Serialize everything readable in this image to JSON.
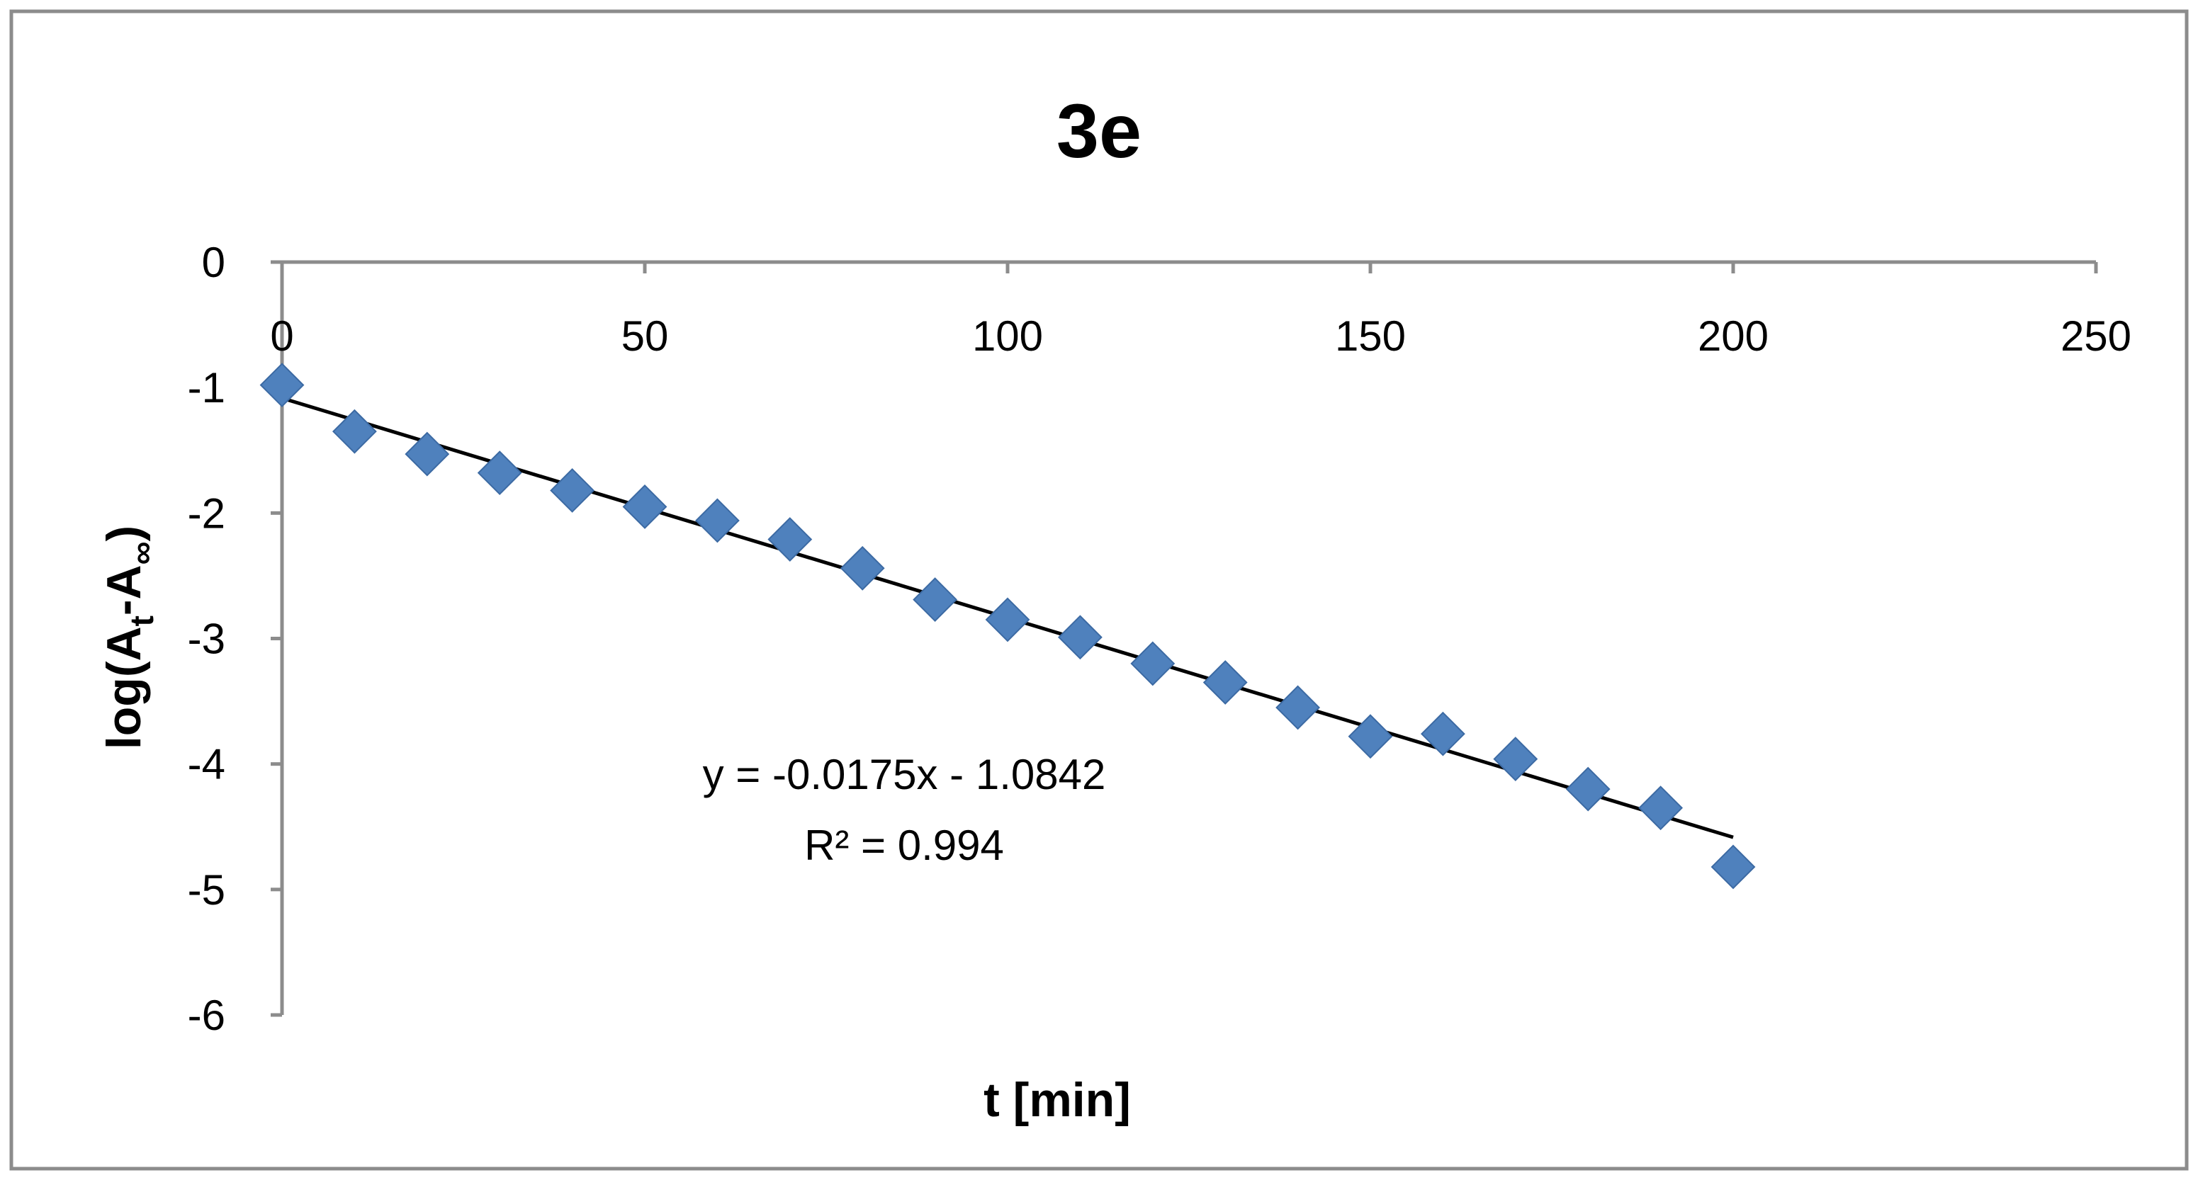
{
  "chart_data": {
    "type": "scatter",
    "title": "3e",
    "xlabel": "t [min]",
    "ylabel": {
      "prefix": "log(A",
      "sub1": "t",
      "mid": "-A",
      "sub2": "∞",
      "suffix": ")"
    },
    "xlim": [
      0,
      250
    ],
    "ylim": [
      -6,
      0
    ],
    "x_ticks": [
      0,
      50,
      100,
      150,
      200,
      250
    ],
    "y_ticks": [
      0,
      -1,
      -2,
      -3,
      -4,
      -5,
      -6
    ],
    "x_tick_labels": [
      "0",
      "50",
      "100",
      "150",
      "200",
      "250"
    ],
    "y_tick_labels": [
      "0",
      "-1",
      "-2",
      "-3",
      "-4",
      "-5",
      "-6"
    ],
    "grid": false,
    "series": [
      {
        "x": [
          0,
          10,
          20,
          30,
          40,
          50,
          60,
          70,
          80,
          90,
          100,
          110,
          120,
          130,
          140,
          150,
          160,
          170,
          180,
          190,
          200
        ],
        "y": [
          -0.98,
          -1.35,
          -1.53,
          -1.68,
          -1.82,
          -1.95,
          -2.06,
          -2.21,
          -2.44,
          -2.69,
          -2.85,
          -2.99,
          -3.2,
          -3.35,
          -3.55,
          -3.78,
          -3.76,
          -3.96,
          -4.2,
          -4.35,
          -4.82
        ],
        "color": "#4f81bd",
        "marker": "diamond"
      }
    ],
    "trendline": {
      "slope": -0.0175,
      "intercept": -1.0842,
      "x_range": [
        0,
        200
      ],
      "color": "#000000",
      "equation": "y = -0.0175x - 1.0842",
      "r2_label": "R² = 0.994"
    }
  }
}
